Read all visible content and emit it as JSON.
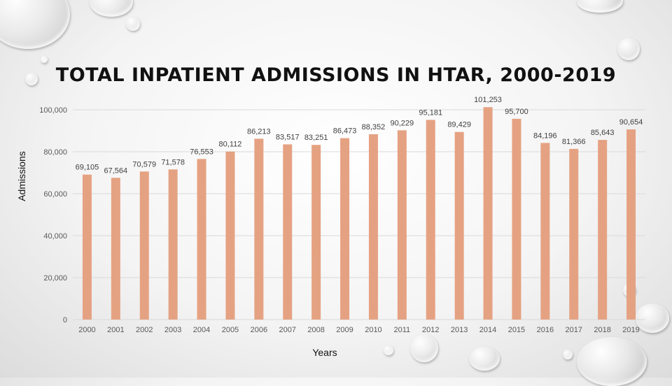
{
  "slide": {
    "title": "TOTAL INPATIENT ADMISSIONS IN HTAR, 2000-2019"
  },
  "chart_data": {
    "type": "bar",
    "title": "TOTAL INPATIENT ADMISSIONS IN HTAR, 2000-2019",
    "xlabel": "Years",
    "ylabel": "Admissions",
    "ylim": [
      0,
      100000
    ],
    "yticks": [
      0,
      20000,
      40000,
      60000,
      80000,
      100000
    ],
    "ytick_labels": [
      "0",
      "20,000",
      "40,000",
      "60,000",
      "80,000",
      "100,000"
    ],
    "categories": [
      "2000",
      "2001",
      "2002",
      "2003",
      "2004",
      "2005",
      "2006",
      "2007",
      "2008",
      "2009",
      "2010",
      "2011",
      "2012",
      "2013",
      "2014",
      "2015",
      "2016",
      "2017",
      "2018",
      "2019"
    ],
    "values": [
      69105,
      67564,
      70579,
      71578,
      76553,
      80112,
      86213,
      83517,
      83251,
      86473,
      88352,
      90229,
      95181,
      89429,
      101253,
      95700,
      84196,
      81366,
      85643,
      90654
    ],
    "data_labels": [
      "69,105",
      "67,564",
      "70,579",
      "71,578",
      "76,553",
      "80,112",
      "86,213",
      "83,517",
      "83,251",
      "86,473",
      "88,352",
      "90,229",
      "95,181",
      "89,429",
      "101,253",
      "95,700",
      "84,196",
      "81,366",
      "85,643",
      "90,654"
    ],
    "grid": true,
    "bar_color": "#E5A282",
    "grid_color": "#d9d9d9"
  }
}
